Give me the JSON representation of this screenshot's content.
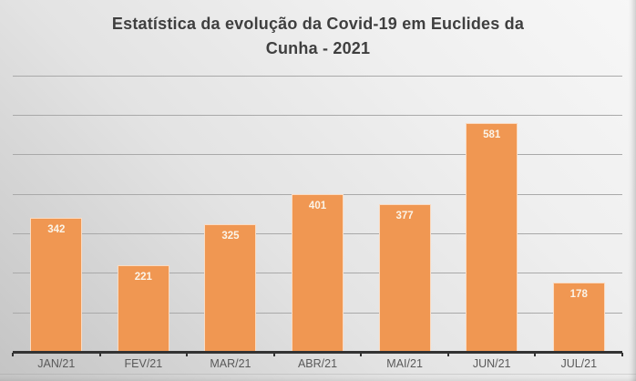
{
  "header": {
    "title_line1": "Estatística da evolução da Covid-19 em Euclides da",
    "title_line2": "Cunha - 2021"
  },
  "chart_data": {
    "type": "bar",
    "title": "Estatística da evolução da Covid-19 em Euclides da Cunha - 2021",
    "categories": [
      "JAN/21",
      "FEV/21",
      "MAR/21",
      "ABR/21",
      "MAI/21",
      "JUN/21",
      "JUL/21"
    ],
    "values": [
      342,
      221,
      325,
      401,
      377,
      581,
      178
    ],
    "xlabel": "",
    "ylabel": "",
    "ylim": [
      0,
      700
    ],
    "gridline_step": 100,
    "grid": true,
    "legend_position": "none",
    "data_labels_position": "inside-end",
    "y_axis_labels_visible": false
  },
  "colors": {
    "bar_fill": "#F09752",
    "bar_border": "rgba(255,255,255,0.65)",
    "bar_label_text": "#FBF4E8",
    "title_text": "#3F3F3F",
    "axis_label_text": "#595959",
    "gridline": "#A9A9A9",
    "axis_line": "#333333",
    "background_light": "#F7F7F7",
    "background_dark": "#C4C4C4"
  }
}
